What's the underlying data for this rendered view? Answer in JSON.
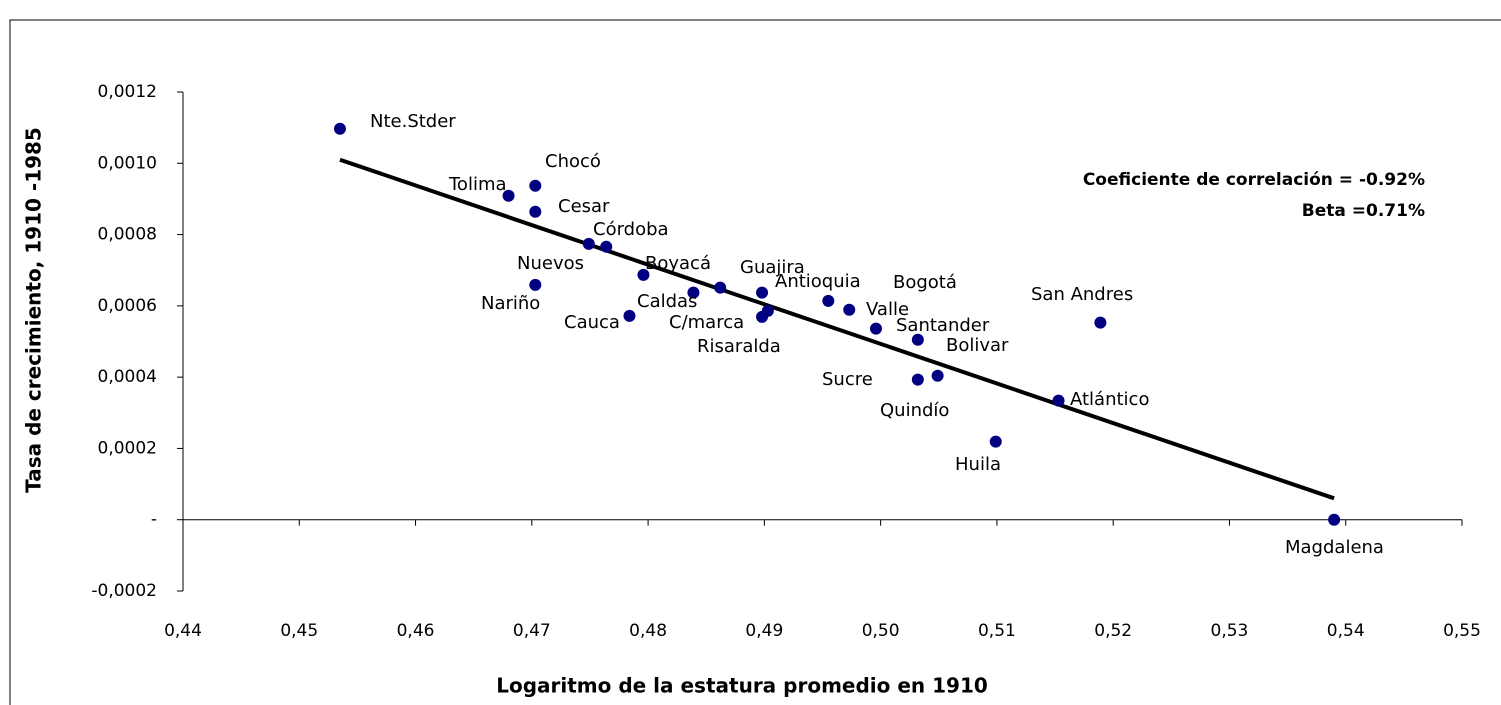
{
  "chart_data": {
    "type": "scatter",
    "xlabel": "Logaritmo de la estatura promedio en 1910",
    "ylabel": "Tasa de crecimiento, 1910 -1985",
    "annotations": [
      "Coeficiente de correlación = -0.92%",
      "Beta =0.71%"
    ],
    "color": "#000080",
    "labels": [
      "Nte.Stder",
      "Chocó",
      "Tolima",
      "Cesar",
      "Córdoba",
      "Nuevos",
      "Nariño",
      "Boyacá",
      "Caldas",
      "Cauca",
      "Guajira",
      "C/marca",
      "Risaralda",
      "Antioquia",
      "Valle",
      "Bogotá",
      "Santander",
      "Bolivar",
      "Sucre",
      "Quindío",
      "San Andres",
      "Atlántico",
      "Huila",
      "Magdalena"
    ],
    "x": [
      0.4535,
      0.4703,
      0.468,
      0.4703,
      0.4764,
      0.4749,
      0.4703,
      0.4796,
      0.4839,
      0.4784,
      0.4898,
      0.4898,
      0.4903,
      0.4955,
      0.4973,
      0.4996,
      0.5032,
      0.5049,
      0.5032,
      0.4862,
      0.5189,
      0.5153,
      0.5099,
      0.539
    ],
    "y": [
      0.001097,
      0.000937,
      0.000909,
      0.000864,
      0.000766,
      0.000774,
      0.000659,
      0.000687,
      0.000637,
      0.000572,
      0.000637,
      0.000569,
      0.000586,
      0.000614,
      0.000589,
      0.000536,
      0.000505,
      0.000404,
      0.000393,
      0.000651,
      0.000553,
      0.000334,
      0.000219,
      0
    ],
    "trendline": {
      "x": [
        0.4535,
        0.539
      ],
      "y": [
        0.00101,
        6e-05
      ],
      "color": "#000000"
    },
    "xlim": [
      0.44,
      0.55
    ],
    "ylim": [
      -0.0002,
      0.0012
    ],
    "xticks": [
      {
        "value": 0.44,
        "label": "0,44"
      },
      {
        "value": 0.45,
        "label": "0,45"
      },
      {
        "value": 0.46,
        "label": "0,46"
      },
      {
        "value": 0.47,
        "label": "0,47"
      },
      {
        "value": 0.48,
        "label": "0,48"
      },
      {
        "value": 0.49,
        "label": "0,49"
      },
      {
        "value": 0.5,
        "label": "0,50"
      },
      {
        "value": 0.51,
        "label": "0,51"
      },
      {
        "value": 0.52,
        "label": "0,52"
      },
      {
        "value": 0.53,
        "label": "0,53"
      },
      {
        "value": 0.54,
        "label": "0,54"
      },
      {
        "value": 0.55,
        "label": "0,55"
      }
    ],
    "yticks": [
      {
        "value": -0.0002,
        "label": "-0,0002"
      },
      {
        "value": 0,
        "label": "-"
      },
      {
        "value": 0.0002,
        "label": "0,0002"
      },
      {
        "value": 0.0004,
        "label": "0,0004"
      },
      {
        "value": 0.0006,
        "label": "0,0006"
      },
      {
        "value": 0.0008,
        "label": "0,0008"
      },
      {
        "value": 0.001,
        "label": "0,0010"
      },
      {
        "value": 0.0012,
        "label": "0,0012"
      }
    ]
  }
}
